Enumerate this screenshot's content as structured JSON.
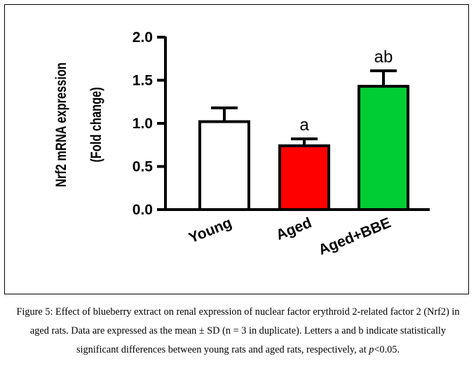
{
  "chart_data": {
    "type": "bar",
    "categories": [
      "Young",
      "Aged",
      "Aged+BBE"
    ],
    "values": [
      1.02,
      0.74,
      1.43
    ],
    "error": [
      0.16,
      0.08,
      0.18
    ],
    "significance_labels": [
      "",
      "a",
      "ab"
    ],
    "colors": [
      "#ffffff",
      "#ff0000",
      "#00cc33"
    ],
    "ylabel_line1": "Nrf2 mRNA expression",
    "ylabel_line2": "(Fold change)",
    "yticks": [
      "0.0",
      "0.5",
      "1.0",
      "1.5",
      "2.0"
    ],
    "ylim": [
      0,
      2.0
    ],
    "grid": false
  },
  "caption": {
    "part1": "Figure 5: Effect of blueberry extract on renal expression of nuclear factor erythroid 2-related factor 2 (Nrf2) in aged rats. Data are expressed as the mean ± SD (n = 3 in duplicate). Letters a and b indicate statistically significant differences between young rats and aged rats, respectively, at ",
    "p": "p",
    "part2": "<0.05."
  }
}
